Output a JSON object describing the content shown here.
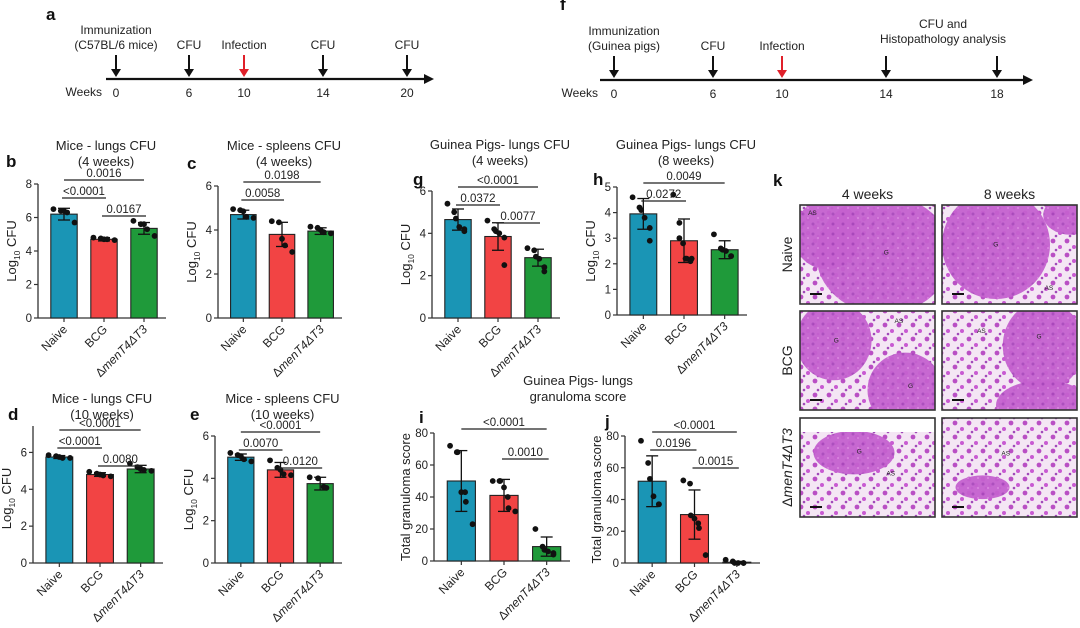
{
  "figure": {
    "timelines": [
      {
        "panel": "a",
        "axis_label": "Weeks",
        "events": [
          {
            "week": "0",
            "label_lines": [
              "Immunization",
              "(C57BL/6 mice)"
            ],
            "highlight": false
          },
          {
            "week": "6",
            "label_lines": [
              "CFU"
            ],
            "highlight": false
          },
          {
            "week": "10",
            "label_lines": [
              "Infection"
            ],
            "highlight": true
          },
          {
            "week": "14",
            "label_lines": [
              "CFU"
            ],
            "highlight": false
          },
          {
            "week": "20",
            "label_lines": [
              "CFU"
            ],
            "highlight": false
          }
        ]
      },
      {
        "panel": "f",
        "axis_label": "Weeks",
        "events": [
          {
            "week": "0",
            "label_lines": [
              "Immunization",
              "(Guinea pigs)"
            ],
            "highlight": false
          },
          {
            "week": "6",
            "label_lines": [
              "CFU"
            ],
            "highlight": false
          },
          {
            "week": "10",
            "label_lines": [
              "Infection"
            ],
            "highlight": true
          },
          {
            "week": "14",
            "label_lines": [],
            "highlight": false
          },
          {
            "week": "18",
            "label_lines": [],
            "highlight": false
          }
        ],
        "span_label_lines": [
          "CFU and",
          "Histopathology analysis"
        ]
      }
    ],
    "colors": {
      "naive": "#1a95b5",
      "bcg": "#f24444",
      "mutant": "#1f9a3a",
      "infection_arrow": "#e0202a",
      "ink": "#222222"
    },
    "histology": {
      "panel": "k",
      "columns": [
        "4 weeks",
        "8 weeks"
      ],
      "rows": [
        "Naive",
        "BCG",
        "ΔmenT4ΔT3"
      ],
      "annotations": [
        [
          [
            "AS",
            "G"
          ],
          [
            "G",
            "AS"
          ]
        ],
        [
          [
            "G",
            "AS",
            "G"
          ],
          [
            "AS",
            "G"
          ]
        ],
        [
          [
            "G",
            "AS"
          ],
          [
            "AS"
          ]
        ]
      ]
    },
    "group_title_ij": [
      "Guinea Pigs- lungs",
      "granuloma score"
    ]
  },
  "chart_data": [
    {
      "panel": "b",
      "type": "bar",
      "title": [
        "Mice - lungs CFU",
        "(4 weeks)"
      ],
      "ylabel": "Log10 CFU",
      "ylim": [
        0,
        8
      ],
      "yticks": [
        0,
        2,
        4,
        6,
        8
      ],
      "categories": [
        "Naive",
        "BCG",
        "ΔmenT4ΔT3"
      ],
      "values": [
        6.2,
        4.7,
        5.35
      ],
      "sd": [
        0.35,
        0.1,
        0.35
      ],
      "points": [
        [
          6.5,
          6.4,
          6.4,
          6.3,
          5.7
        ],
        [
          4.8,
          4.75,
          4.7,
          4.7,
          4.65
        ],
        [
          5.8,
          5.6,
          5.6,
          5.3,
          4.9
        ]
      ],
      "comparisons": [
        {
          "from": 0,
          "to": 2,
          "label": "0.0016"
        },
        {
          "from": 0,
          "to": 1,
          "label": "<0.0001"
        },
        {
          "from": 1,
          "to": 2,
          "label": "0.0167"
        }
      ]
    },
    {
      "panel": "c",
      "type": "bar",
      "title": [
        "Mice - spleens CFU",
        "(4 weeks)"
      ],
      "ylabel": "Log10 CFU",
      "ylim": [
        0,
        6
      ],
      "yticks": [
        0,
        2,
        4,
        6
      ],
      "categories": [
        "Naive",
        "BCG",
        "ΔmenT4ΔT3"
      ],
      "values": [
        4.7,
        3.8,
        3.95
      ],
      "sd": [
        0.2,
        0.55,
        0.15
      ],
      "points": [
        [
          4.95,
          4.9,
          4.85,
          4.6,
          4.55
        ],
        [
          4.4,
          4.35,
          3.6,
          3.3,
          3.0
        ],
        [
          4.15,
          4.1,
          4.0,
          3.9,
          3.85
        ]
      ],
      "comparisons": [
        {
          "from": 0,
          "to": 2,
          "label": "0.0198"
        },
        {
          "from": 0,
          "to": 1,
          "label": "0.0058"
        }
      ]
    },
    {
      "panel": "d",
      "type": "bar",
      "title": [
        "Mice - lungs CFU",
        "(10 weeks)"
      ],
      "ylabel": "Log10 CFU",
      "ylim": [
        0,
        7
      ],
      "yticks": [
        0,
        2,
        4,
        6
      ],
      "categories": [
        "Naive",
        "BCG",
        "ΔmenT4ΔT3"
      ],
      "values": [
        5.75,
        4.8,
        5.1
      ],
      "sd": [
        0.08,
        0.1,
        0.2
      ],
      "points": [
        [
          5.85,
          5.8,
          5.75,
          5.7,
          5.7
        ],
        [
          4.95,
          4.85,
          4.8,
          4.75,
          4.7
        ],
        [
          5.4,
          5.2,
          5.1,
          5.05,
          5.0
        ]
      ],
      "comparisons": [
        {
          "from": 0,
          "to": 2,
          "label": "<0.0001"
        },
        {
          "from": 0,
          "to": 1,
          "label": "<0.0001"
        },
        {
          "from": 1,
          "to": 2,
          "label": "0.0080"
        }
      ]
    },
    {
      "panel": "e",
      "type": "bar",
      "title": [
        "Mice - spleens CFU",
        "(10 weeks)"
      ],
      "ylabel": "Log10 CFU",
      "ylim": [
        0,
        6
      ],
      "yticks": [
        0,
        2,
        4,
        6
      ],
      "categories": [
        "Naive",
        "BCG",
        "ΔmenT4ΔT3"
      ],
      "values": [
        5.0,
        4.4,
        3.75
      ],
      "sd": [
        0.15,
        0.35,
        0.3
      ],
      "points": [
        [
          5.2,
          5.1,
          5.05,
          4.9,
          4.8
        ],
        [
          4.85,
          4.5,
          4.4,
          4.2,
          4.15
        ],
        [
          4.05,
          4.0,
          3.6,
          3.55
        ]
      ],
      "comparisons": [
        {
          "from": 0,
          "to": 2,
          "label": "<0.0001"
        },
        {
          "from": 0,
          "to": 1,
          "label": "0.0070"
        },
        {
          "from": 1,
          "to": 2,
          "label": "0.0120"
        }
      ]
    },
    {
      "panel": "g",
      "type": "bar",
      "title": [
        "Guinea Pigs- lungs CFU",
        "(4 weeks)"
      ],
      "ylabel": "Log10 CFU",
      "ylim": [
        0,
        6
      ],
      "yticks": [
        0,
        2,
        4,
        6
      ],
      "categories": [
        "Naive",
        "BCG",
        "ΔmenT4ΔT3"
      ],
      "values": [
        4.65,
        3.85,
        2.85
      ],
      "sd": [
        0.5,
        0.65,
        0.4
      ],
      "points": [
        [
          5.4,
          5.0,
          4.7,
          4.3,
          4.2,
          4.1
        ],
        [
          4.6,
          4.2,
          4.1,
          4.0,
          3.8,
          2.5
        ],
        [
          3.3,
          3.2,
          2.9,
          2.8,
          2.4,
          2.2
        ]
      ],
      "comparisons": [
        {
          "from": 0,
          "to": 2,
          "label": "<0.0001"
        },
        {
          "from": 0,
          "to": 1,
          "label": "0.0372"
        },
        {
          "from": 1,
          "to": 2,
          "label": "0.0077"
        }
      ]
    },
    {
      "panel": "h",
      "type": "bar",
      "title": [
        "Guinea Pigs- lungs CFU",
        "(8 weeks)"
      ],
      "ylabel": "Log10 CFU",
      "ylim": [
        0,
        5
      ],
      "yticks": [
        0,
        1,
        2,
        3,
        4,
        5
      ],
      "categories": [
        "Naive",
        "BCG",
        "ΔmenT4ΔT3"
      ],
      "values": [
        3.95,
        2.9,
        2.55
      ],
      "sd": [
        0.6,
        0.85,
        0.35
      ],
      "points": [
        [
          4.6,
          4.2,
          4.1,
          3.8,
          3.4,
          2.9
        ],
        [
          4.7,
          3.6,
          3.0,
          2.8,
          2.2,
          2.2,
          2.2,
          2.1
        ],
        [
          3.15,
          2.6,
          2.55,
          2.5,
          2.3,
          2.3
        ]
      ],
      "comparisons": [
        {
          "from": 0,
          "to": 2,
          "label": "0.0049"
        },
        {
          "from": 0,
          "to": 1,
          "label": "0.0272"
        }
      ]
    },
    {
      "panel": "i",
      "type": "bar",
      "title": [],
      "ylabel": "Total granuloma score",
      "ylim": [
        0,
        80
      ],
      "yticks": [
        0,
        20,
        40,
        60,
        80
      ],
      "categories": [
        "Naive",
        "BCG",
        "ΔmenT4ΔT3"
      ],
      "values": [
        50,
        41,
        9
      ],
      "sd": [
        19,
        10,
        6
      ],
      "points": [
        [
          72,
          68,
          68,
          43,
          43,
          37,
          23
        ],
        [
          50,
          50,
          50,
          46,
          40,
          33,
          31
        ],
        [
          20,
          9,
          7,
          6,
          5,
          4
        ]
      ],
      "comparisons": [
        {
          "from": 0,
          "to": 2,
          "label": "<0.0001"
        },
        {
          "from": 1,
          "to": 2,
          "label": "0.0010"
        }
      ]
    },
    {
      "panel": "j",
      "type": "bar",
      "title": [],
      "ylabel": "Total granuloma score",
      "ylim": [
        0,
        80
      ],
      "yticks": [
        0,
        20,
        40,
        60,
        80
      ],
      "categories": [
        "Naive",
        "BCG",
        "ΔmenT4ΔT3"
      ],
      "values": [
        51.5,
        30.5,
        0.5
      ],
      "sd": [
        16,
        15.5,
        0.5
      ],
      "points": [
        [
          77,
          63,
          53,
          42,
          37,
          37
        ],
        [
          52,
          50,
          30,
          28,
          25,
          22,
          5
        ],
        [
          2,
          1,
          0,
          0,
          0,
          0
        ]
      ],
      "comparisons": [
        {
          "from": 0,
          "to": 2,
          "label": "<0.0001"
        },
        {
          "from": 0,
          "to": 1,
          "label": "0.0196"
        },
        {
          "from": 1,
          "to": 2,
          "label": "0.0015"
        }
      ]
    }
  ],
  "panel_letters": [
    "a",
    "b",
    "c",
    "d",
    "e",
    "f",
    "g",
    "h",
    "i",
    "j",
    "k"
  ]
}
